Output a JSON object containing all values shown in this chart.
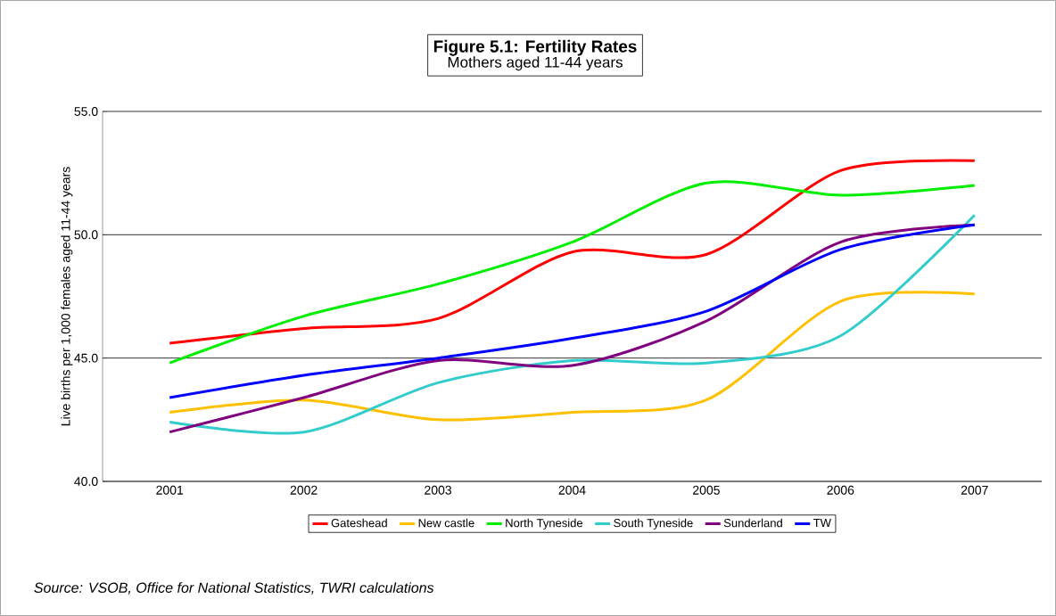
{
  "chart_data": {
    "type": "line",
    "title": "Figure 5.1: Fertility Rates",
    "subtitle": "Mothers aged 11-44 years",
    "ylabel": "Live births per 1,000 females aged 11-44 years",
    "categories": [
      "2001",
      "2002",
      "2003",
      "2004",
      "2005",
      "2006",
      "2007"
    ],
    "series": [
      {
        "name": "Gateshead",
        "color": "#ff0000",
        "values": [
          45.6,
          46.2,
          46.6,
          49.3,
          49.2,
          52.6,
          53.0
        ]
      },
      {
        "name": "New castle",
        "color": "#ffc000",
        "values": [
          42.8,
          43.3,
          42.5,
          42.8,
          43.3,
          47.3,
          47.6
        ]
      },
      {
        "name": "North Tyneside",
        "color": "#00ee00",
        "values": [
          44.8,
          46.7,
          48.0,
          49.7,
          52.1,
          51.6,
          52.0
        ]
      },
      {
        "name": "South Tyneside",
        "color": "#33cccc",
        "values": [
          42.4,
          42.0,
          44.0,
          44.9,
          44.8,
          45.9,
          50.8
        ]
      },
      {
        "name": "Sunderland",
        "color": "#800080",
        "values": [
          42.0,
          43.4,
          44.9,
          44.7,
          46.5,
          49.7,
          50.4
        ]
      },
      {
        "name": "TW",
        "color": "#0000ff",
        "values": [
          43.4,
          44.3,
          45.0,
          45.8,
          46.9,
          49.4,
          50.4
        ]
      }
    ],
    "ylim": [
      40,
      55
    ],
    "yticks": [
      {
        "value": 40,
        "label": "40.0"
      },
      {
        "value": 45,
        "label": "45.0"
      },
      {
        "value": 50,
        "label": "50.0"
      },
      {
        "value": 55,
        "label": "55.0"
      }
    ],
    "grid": "y",
    "legend": "bottom",
    "marker": "none",
    "line_style": "solid",
    "annotations": [
      "Source: VSOB, Office for National Statistics, TWRI calculations"
    ]
  }
}
